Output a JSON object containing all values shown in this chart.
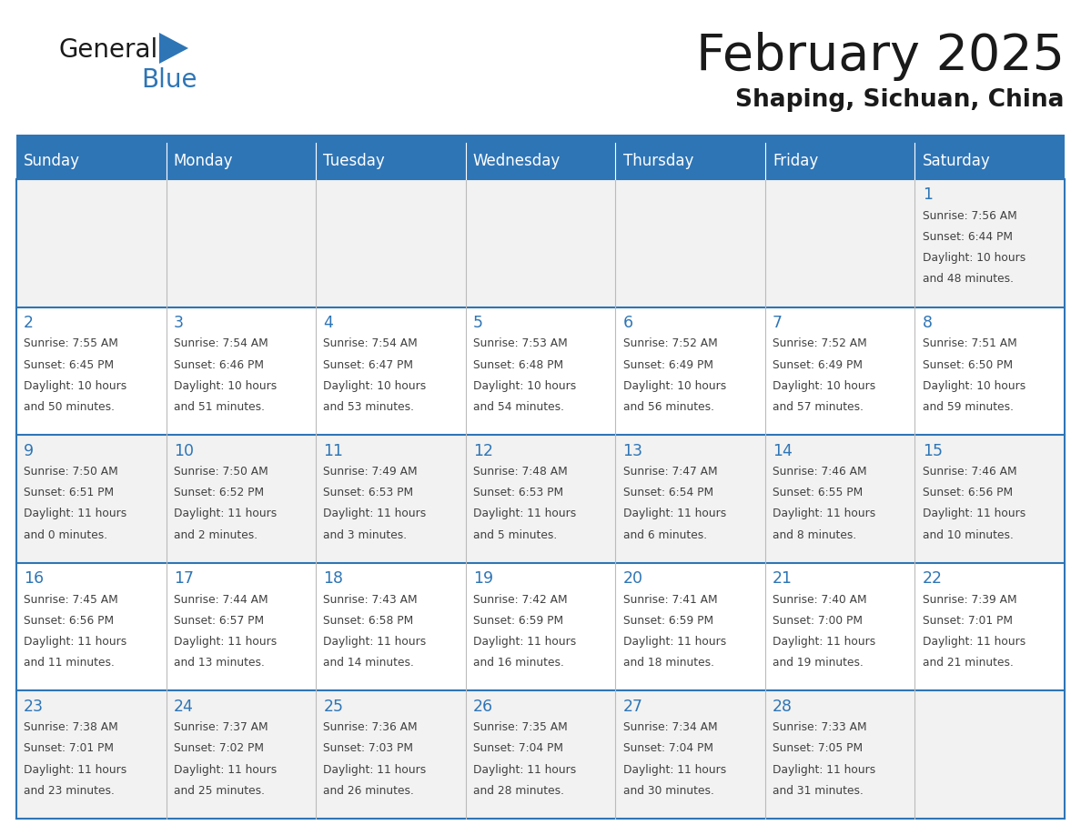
{
  "title": "February 2025",
  "subtitle": "Shaping, Sichuan, China",
  "days_of_week": [
    "Sunday",
    "Monday",
    "Tuesday",
    "Wednesday",
    "Thursday",
    "Friday",
    "Saturday"
  ],
  "header_bg": "#2E75B6",
  "header_text_color": "#FFFFFF",
  "row0_bg": "#F2F2F2",
  "row1_bg": "#FFFFFF",
  "row2_bg": "#F2F2F2",
  "row3_bg": "#FFFFFF",
  "row4_bg": "#F2F2F2",
  "cell_border_color": "#2E75B6",
  "cell_divider_color": "#AAAAAA",
  "day_num_color": "#2E75B6",
  "text_color": "#404040",
  "title_color": "#1a1a1a",
  "logo_general_color": "#1a1a1a",
  "logo_blue_color": "#2E75B6",
  "logo_triangle_color": "#2E75B6",
  "separator_color": "#2E75B6",
  "calendar_data": [
    [
      null,
      null,
      null,
      null,
      null,
      null,
      {
        "day": "1",
        "sunrise": "7:56 AM",
        "sunset": "6:44 PM",
        "daylight_line1": "Daylight: 10 hours",
        "daylight_line2": "and 48 minutes."
      }
    ],
    [
      {
        "day": "2",
        "sunrise": "7:55 AM",
        "sunset": "6:45 PM",
        "daylight_line1": "Daylight: 10 hours",
        "daylight_line2": "and 50 minutes."
      },
      {
        "day": "3",
        "sunrise": "7:54 AM",
        "sunset": "6:46 PM",
        "daylight_line1": "Daylight: 10 hours",
        "daylight_line2": "and 51 minutes."
      },
      {
        "day": "4",
        "sunrise": "7:54 AM",
        "sunset": "6:47 PM",
        "daylight_line1": "Daylight: 10 hours",
        "daylight_line2": "and 53 minutes."
      },
      {
        "day": "5",
        "sunrise": "7:53 AM",
        "sunset": "6:48 PM",
        "daylight_line1": "Daylight: 10 hours",
        "daylight_line2": "and 54 minutes."
      },
      {
        "day": "6",
        "sunrise": "7:52 AM",
        "sunset": "6:49 PM",
        "daylight_line1": "Daylight: 10 hours",
        "daylight_line2": "and 56 minutes."
      },
      {
        "day": "7",
        "sunrise": "7:52 AM",
        "sunset": "6:49 PM",
        "daylight_line1": "Daylight: 10 hours",
        "daylight_line2": "and 57 minutes."
      },
      {
        "day": "8",
        "sunrise": "7:51 AM",
        "sunset": "6:50 PM",
        "daylight_line1": "Daylight: 10 hours",
        "daylight_line2": "and 59 minutes."
      }
    ],
    [
      {
        "day": "9",
        "sunrise": "7:50 AM",
        "sunset": "6:51 PM",
        "daylight_line1": "Daylight: 11 hours",
        "daylight_line2": "and 0 minutes."
      },
      {
        "day": "10",
        "sunrise": "7:50 AM",
        "sunset": "6:52 PM",
        "daylight_line1": "Daylight: 11 hours",
        "daylight_line2": "and 2 minutes."
      },
      {
        "day": "11",
        "sunrise": "7:49 AM",
        "sunset": "6:53 PM",
        "daylight_line1": "Daylight: 11 hours",
        "daylight_line2": "and 3 minutes."
      },
      {
        "day": "12",
        "sunrise": "7:48 AM",
        "sunset": "6:53 PM",
        "daylight_line1": "Daylight: 11 hours",
        "daylight_line2": "and 5 minutes."
      },
      {
        "day": "13",
        "sunrise": "7:47 AM",
        "sunset": "6:54 PM",
        "daylight_line1": "Daylight: 11 hours",
        "daylight_line2": "and 6 minutes."
      },
      {
        "day": "14",
        "sunrise": "7:46 AM",
        "sunset": "6:55 PM",
        "daylight_line1": "Daylight: 11 hours",
        "daylight_line2": "and 8 minutes."
      },
      {
        "day": "15",
        "sunrise": "7:46 AM",
        "sunset": "6:56 PM",
        "daylight_line1": "Daylight: 11 hours",
        "daylight_line2": "and 10 minutes."
      }
    ],
    [
      {
        "day": "16",
        "sunrise": "7:45 AM",
        "sunset": "6:56 PM",
        "daylight_line1": "Daylight: 11 hours",
        "daylight_line2": "and 11 minutes."
      },
      {
        "day": "17",
        "sunrise": "7:44 AM",
        "sunset": "6:57 PM",
        "daylight_line1": "Daylight: 11 hours",
        "daylight_line2": "and 13 minutes."
      },
      {
        "day": "18",
        "sunrise": "7:43 AM",
        "sunset": "6:58 PM",
        "daylight_line1": "Daylight: 11 hours",
        "daylight_line2": "and 14 minutes."
      },
      {
        "day": "19",
        "sunrise": "7:42 AM",
        "sunset": "6:59 PM",
        "daylight_line1": "Daylight: 11 hours",
        "daylight_line2": "and 16 minutes."
      },
      {
        "day": "20",
        "sunrise": "7:41 AM",
        "sunset": "6:59 PM",
        "daylight_line1": "Daylight: 11 hours",
        "daylight_line2": "and 18 minutes."
      },
      {
        "day": "21",
        "sunrise": "7:40 AM",
        "sunset": "7:00 PM",
        "daylight_line1": "Daylight: 11 hours",
        "daylight_line2": "and 19 minutes."
      },
      {
        "day": "22",
        "sunrise": "7:39 AM",
        "sunset": "7:01 PM",
        "daylight_line1": "Daylight: 11 hours",
        "daylight_line2": "and 21 minutes."
      }
    ],
    [
      {
        "day": "23",
        "sunrise": "7:38 AM",
        "sunset": "7:01 PM",
        "daylight_line1": "Daylight: 11 hours",
        "daylight_line2": "and 23 minutes."
      },
      {
        "day": "24",
        "sunrise": "7:37 AM",
        "sunset": "7:02 PM",
        "daylight_line1": "Daylight: 11 hours",
        "daylight_line2": "and 25 minutes."
      },
      {
        "day": "25",
        "sunrise": "7:36 AM",
        "sunset": "7:03 PM",
        "daylight_line1": "Daylight: 11 hours",
        "daylight_line2": "and 26 minutes."
      },
      {
        "day": "26",
        "sunrise": "7:35 AM",
        "sunset": "7:04 PM",
        "daylight_line1": "Daylight: 11 hours",
        "daylight_line2": "and 28 minutes."
      },
      {
        "day": "27",
        "sunrise": "7:34 AM",
        "sunset": "7:04 PM",
        "daylight_line1": "Daylight: 11 hours",
        "daylight_line2": "and 30 minutes."
      },
      {
        "day": "28",
        "sunrise": "7:33 AM",
        "sunset": "7:05 PM",
        "daylight_line1": "Daylight: 11 hours",
        "daylight_line2": "and 31 minutes."
      },
      null
    ]
  ]
}
